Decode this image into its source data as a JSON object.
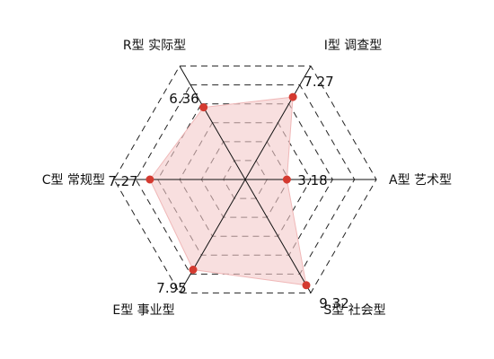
{
  "chart_data": {
    "type": "radar",
    "title": "",
    "r_max": 10,
    "ring_count": 6,
    "grid": true,
    "axes": [
      {
        "key": "R",
        "label": "R型 实际型",
        "value": 6.36,
        "value_label": "6.36"
      },
      {
        "key": "I",
        "label": "I型 调查型",
        "value": 7.27,
        "value_label": "7.27"
      },
      {
        "key": "A",
        "label": "A型 艺术型",
        "value": 3.18,
        "value_label": "3.18"
      },
      {
        "key": "S",
        "label": "S型 社会型",
        "value": 9.32,
        "value_label": "9.32"
      },
      {
        "key": "E",
        "label": "E型 事业型",
        "value": 7.95,
        "value_label": "7.95"
      },
      {
        "key": "C",
        "label": "C型 常规型",
        "value": 7.27,
        "value_label": "7.27"
      }
    ]
  },
  "colors": {
    "fill": "#f4c9c9",
    "outline": "#f0b8b8",
    "point": "#d43a30",
    "grid": "#222222",
    "axis": "#111111"
  }
}
